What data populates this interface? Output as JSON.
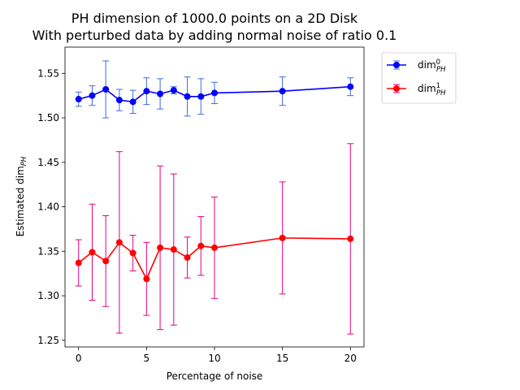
{
  "chart_data": {
    "type": "line",
    "title": [
      "PH dimension of 1000.0 points on a 2D Disk",
      "With perturbed data by adding normal noise of ratio 0.1"
    ],
    "xlabel": "Percentage of noise",
    "ylabel": "Estimated dim",
    "ylabel_sub": "PH",
    "xlim": [
      -1,
      21
    ],
    "ylim": [
      1.2425,
      1.5795
    ],
    "xticks": [
      0,
      5,
      10,
      15,
      20
    ],
    "yticks": [
      1.25,
      1.3,
      1.35,
      1.4,
      1.45,
      1.5,
      1.55
    ],
    "grid": false,
    "legend_position": "outside-top-right",
    "x": [
      0,
      1,
      2,
      3,
      4,
      5,
      6,
      7,
      8,
      9,
      10,
      15,
      20
    ],
    "series": [
      {
        "name": "dim",
        "name_sup": "0",
        "name_sub": "PH",
        "color": "#0000ff",
        "errcolor": "#4169e1",
        "values": [
          1.521,
          1.525,
          1.532,
          1.52,
          1.518,
          1.53,
          1.527,
          1.531,
          1.524,
          1.524,
          1.528,
          1.53,
          1.535
        ],
        "errors": [
          0.008,
          0.011,
          0.032,
          0.012,
          0.013,
          0.015,
          0.017,
          0.004,
          0.022,
          0.02,
          0.012,
          0.016,
          0.01
        ]
      },
      {
        "name": "dim",
        "name_sup": "1",
        "name_sub": "PH",
        "color": "#ff0000",
        "errcolor": "#e6007e",
        "values": [
          1.337,
          1.349,
          1.339,
          1.36,
          1.348,
          1.319,
          1.354,
          1.352,
          1.343,
          1.356,
          1.354,
          1.365,
          1.364
        ],
        "errors": [
          0.026,
          0.054,
          0.051,
          0.102,
          0.02,
          0.041,
          0.092,
          0.085,
          0.023,
          0.033,
          0.057,
          0.063,
          0.107
        ]
      }
    ]
  }
}
